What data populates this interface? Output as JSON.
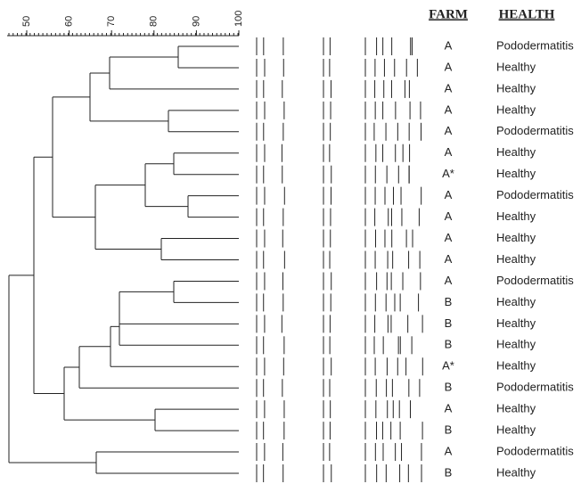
{
  "axis": {
    "ticks": [
      50,
      60,
      70,
      80,
      90,
      100
    ]
  },
  "headers": {
    "farm": "FARM",
    "health": "HEALTH"
  },
  "rows": [
    {
      "farm": "A",
      "health": "Pododermatitis"
    },
    {
      "farm": "A",
      "health": "Healthy"
    },
    {
      "farm": "A",
      "health": "Healthy"
    },
    {
      "farm": "A",
      "health": "Healthy"
    },
    {
      "farm": "A",
      "health": "Pododermatitis"
    },
    {
      "farm": "A",
      "health": "Healthy"
    },
    {
      "farm": "A*",
      "health": "Healthy"
    },
    {
      "farm": "A",
      "health": "Pododermatitis"
    },
    {
      "farm": "A",
      "health": "Healthy"
    },
    {
      "farm": "A",
      "health": "Healthy"
    },
    {
      "farm": "A",
      "health": "Healthy"
    },
    {
      "farm": "A",
      "health": "Pododermatitis"
    },
    {
      "farm": "B",
      "health": "Healthy"
    },
    {
      "farm": "B",
      "health": "Healthy"
    },
    {
      "farm": "B",
      "health": "Healthy"
    },
    {
      "farm": "A*",
      "health": "Healthy"
    },
    {
      "farm": "B",
      "health": "Pododermatitis"
    },
    {
      "farm": "A",
      "health": "Healthy"
    },
    {
      "farm": "B",
      "health": "Healthy"
    },
    {
      "farm": "A",
      "health": "Pododermatitis"
    },
    {
      "farm": "B",
      "health": "Healthy"
    }
  ]
}
